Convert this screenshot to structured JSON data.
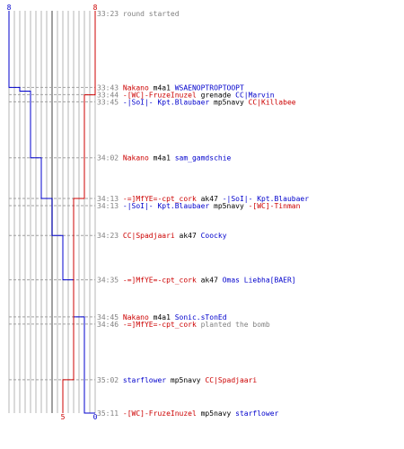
{
  "colors": {
    "blue_team": "#0000cc",
    "red_team": "#cc0000",
    "neutral": "#808080",
    "grid": "#b4b4b4",
    "time": "#808080",
    "dash": "#a0a0a0"
  },
  "chart_data": {
    "type": "line",
    "title": "",
    "xlabel": "",
    "ylabel": "",
    "y_axis": "time (mm:ss), top to bottom",
    "blue_team_alive_start": 8,
    "blue_team_alive_end": 0,
    "red_team_alive_start": 8,
    "red_team_alive_end": 5,
    "events": [
      {
        "time": "33:23",
        "parts": [
          {
            "t": "round started",
            "c": "neutral"
          }
        ]
      },
      {
        "time": "33:43",
        "parts": [
          {
            "t": "Nakano",
            "c": "red"
          },
          {
            "t": " m4a1 ",
            "c": "black"
          },
          {
            "t": "WSAENOPTROPTOOPT",
            "c": "blue"
          }
        ]
      },
      {
        "time": "33:44",
        "parts": [
          {
            "t": "-[WC]-FruzeInuzel",
            "c": "red"
          },
          {
            "t": " grenade ",
            "c": "black"
          },
          {
            "t": "CC|Marvin",
            "c": "blue"
          }
        ]
      },
      {
        "time": "33:45",
        "parts": [
          {
            "t": "-|SoI|- Kpt.Blaubaer",
            "c": "blue"
          },
          {
            "t": " mp5navy ",
            "c": "black"
          },
          {
            "t": "CC|Killabee",
            "c": "red"
          }
        ]
      },
      {
        "time": "34:02",
        "parts": [
          {
            "t": "Nakano",
            "c": "red"
          },
          {
            "t": " m4a1 ",
            "c": "black"
          },
          {
            "t": "sam_gamdschie",
            "c": "blue"
          }
        ]
      },
      {
        "time": "34:13",
        "parts": [
          {
            "t": "-=]MfYE=-cpt_cork",
            "c": "red"
          },
          {
            "t": " ak47 ",
            "c": "black"
          },
          {
            "t": "-|SoI|- Kpt.Blaubaer",
            "c": "blue"
          }
        ]
      },
      {
        "time": "34:13",
        "parts": [
          {
            "t": "-|SoI|- Kpt.Blaubaer",
            "c": "blue"
          },
          {
            "t": " mp5navy ",
            "c": "black"
          },
          {
            "t": "-[WC]-Tinman",
            "c": "red"
          }
        ]
      },
      {
        "time": "34:23",
        "parts": [
          {
            "t": "CC|Spadjaari",
            "c": "red"
          },
          {
            "t": " ak47 ",
            "c": "black"
          },
          {
            "t": "Coocky",
            "c": "blue"
          }
        ]
      },
      {
        "time": "34:35",
        "parts": [
          {
            "t": "-=]MfYE=-cpt_cork",
            "c": "red"
          },
          {
            "t": " ak47 ",
            "c": "black"
          },
          {
            "t": "Omas Liebha[BAER]",
            "c": "blue"
          }
        ]
      },
      {
        "time": "34:45",
        "parts": [
          {
            "t": "Nakano",
            "c": "red"
          },
          {
            "t": " m4a1 ",
            "c": "black"
          },
          {
            "t": "Sonic.sTonEd",
            "c": "blue"
          }
        ]
      },
      {
        "time": "34:46",
        "parts": [
          {
            "t": "-=]MfYE=-cpt_cork",
            "c": "red"
          },
          {
            "t": " planted the bomb",
            "c": "neutral"
          }
        ]
      },
      {
        "time": "35:02",
        "parts": [
          {
            "t": "starflower",
            "c": "blue"
          },
          {
            "t": " mp5navy ",
            "c": "black"
          },
          {
            "t": "CC|Spadjaari",
            "c": "red"
          }
        ]
      },
      {
        "time": "35:11",
        "parts": [
          {
            "t": "-[WC]-FruzeInuzel",
            "c": "red"
          },
          {
            "t": " mp5navy ",
            "c": "black"
          },
          {
            "t": "starflower",
            "c": "blue"
          }
        ]
      }
    ],
    "blue_alive_series": [
      {
        "time": "33:23",
        "alive": 8
      },
      {
        "time": "33:43",
        "alive": 7
      },
      {
        "time": "33:44",
        "alive": 6
      },
      {
        "time": "34:02",
        "alive": 5
      },
      {
        "time": "34:13",
        "alive": 4
      },
      {
        "time": "34:23",
        "alive": 3
      },
      {
        "time": "34:35",
        "alive": 2
      },
      {
        "time": "34:45",
        "alive": 1
      },
      {
        "time": "35:11",
        "alive": 0
      }
    ],
    "red_alive_series": [
      {
        "time": "33:23",
        "alive": 8
      },
      {
        "time": "33:45",
        "alive": 7
      },
      {
        "time": "34:13",
        "alive": 6
      },
      {
        "time": "35:02",
        "alive": 5
      }
    ]
  }
}
